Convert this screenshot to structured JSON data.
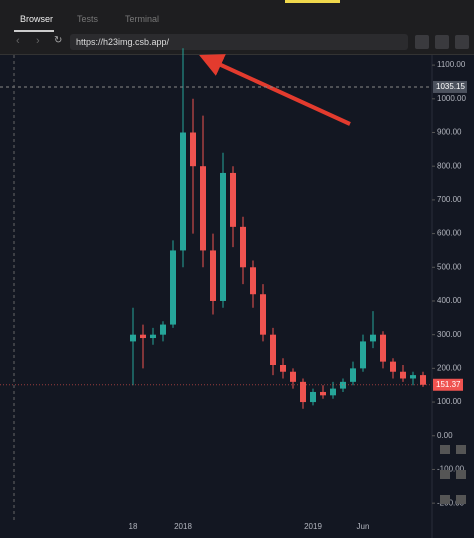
{
  "browser": {
    "tabs": [
      "Browser",
      "Tests",
      "Terminal"
    ],
    "url": "https://h23img.csb.app/"
  },
  "chart_data": {
    "type": "candlestick",
    "categories": [
      "18",
      null,
      null,
      null,
      null,
      "2018",
      null,
      null,
      null,
      null,
      null,
      null,
      null,
      null,
      null,
      null,
      null,
      null,
      "2019",
      null,
      null,
      null,
      null,
      "Jun",
      null,
      null,
      null,
      null,
      null,
      null
    ],
    "open": [
      280,
      300,
      290,
      300,
      330,
      550,
      900,
      800,
      550,
      400,
      780,
      620,
      500,
      420,
      300,
      210,
      190,
      160,
      100,
      130,
      120,
      140,
      160,
      200,
      280,
      300,
      220,
      190,
      170,
      180
    ],
    "high": [
      380,
      330,
      320,
      340,
      580,
      1150,
      1000,
      950,
      600,
      840,
      800,
      650,
      520,
      450,
      320,
      230,
      200,
      170,
      140,
      150,
      160,
      170,
      220,
      300,
      370,
      310,
      230,
      210,
      190,
      190
    ],
    "low": [
      150,
      200,
      270,
      280,
      320,
      500,
      600,
      500,
      360,
      380,
      560,
      450,
      380,
      280,
      180,
      170,
      140,
      80,
      90,
      110,
      110,
      130,
      150,
      190,
      260,
      200,
      170,
      160,
      150,
      145
    ],
    "close": [
      300,
      290,
      300,
      330,
      550,
      900,
      800,
      550,
      400,
      780,
      620,
      500,
      420,
      300,
      210,
      190,
      160,
      100,
      130,
      120,
      140,
      160,
      200,
      280,
      300,
      220,
      190,
      170,
      180,
      151.37
    ],
    "up_color": "#26a69a",
    "down_color": "#ef5350",
    "ylim": [
      -250,
      1130
    ],
    "yticks": [
      {
        "value": 1100,
        "label": "1100.00"
      },
      {
        "value": 1000,
        "label": "1000.00"
      },
      {
        "value": 900,
        "label": "900.00"
      },
      {
        "value": 800,
        "label": "800.00"
      },
      {
        "value": 700,
        "label": "700.00"
      },
      {
        "value": 600,
        "label": "600.00"
      },
      {
        "value": 500,
        "label": "500.00"
      },
      {
        "value": 400,
        "label": "400.00"
      },
      {
        "value": 300,
        "label": "300.00"
      },
      {
        "value": 200,
        "label": "200.00"
      },
      {
        "value": 100,
        "label": "100.00"
      },
      {
        "value": 0,
        "label": "0.00"
      },
      {
        "value": -100,
        "label": "-100.00"
      },
      {
        "value": -200,
        "label": "-200.00"
      }
    ],
    "crosshair_value": 1035.15,
    "last_price": 151.37
  }
}
